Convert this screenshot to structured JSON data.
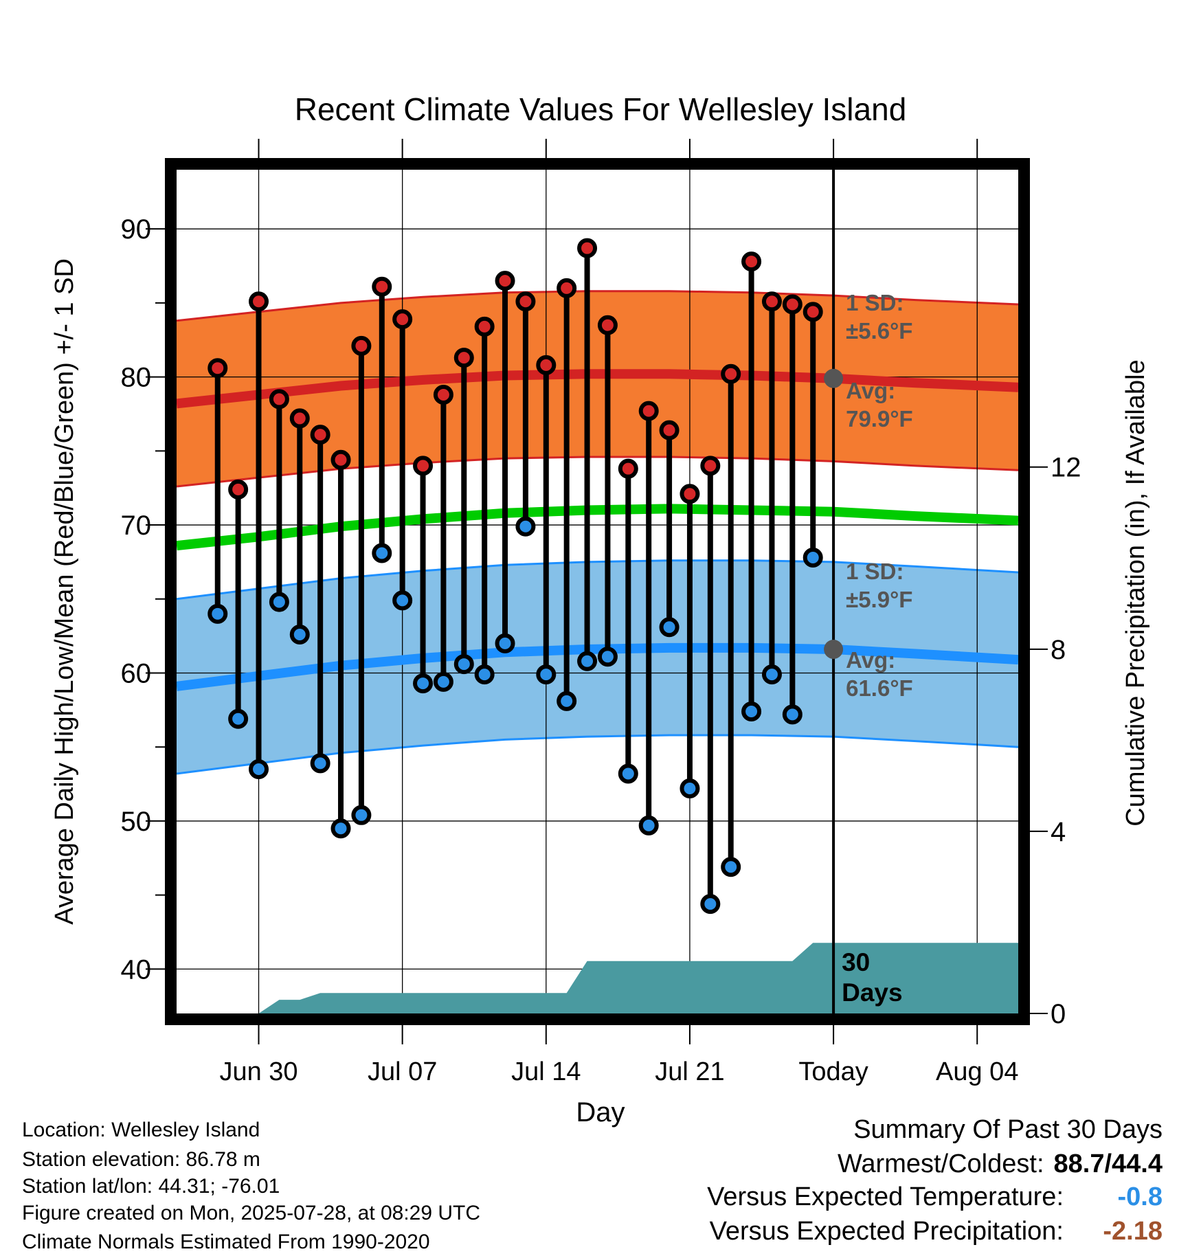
{
  "chart_data": {
    "type": "line",
    "title": "Recent Climate Values For Wellesley Island",
    "xlabel": "Day",
    "ylabel": "Average Daily High/Low/Mean (Red/Blue/Green) +/- 1 SD",
    "y2label": "Cumulative Precipitation (in), If Available",
    "ylim": [
      37,
      94
    ],
    "y2lim": [
      0,
      18.53
    ],
    "yticks": [
      40,
      50,
      60,
      70,
      80,
      90
    ],
    "y2ticks": [
      0,
      4,
      8,
      12
    ],
    "xlim": [
      "2025-06-26",
      "2025-08-06"
    ],
    "xtick_labels": [
      {
        "date": "2025-06-30",
        "label": "Jun 30"
      },
      {
        "date": "2025-07-07",
        "label": "Jul 07"
      },
      {
        "date": "2025-07-14",
        "label": "Jul 14"
      },
      {
        "date": "2025-07-21",
        "label": "Jul 21"
      },
      {
        "date": "2025-07-28",
        "label": "Today"
      },
      {
        "date": "2025-08-04",
        "label": "Aug 04"
      }
    ],
    "grid": true,
    "today": "2025-07-28",
    "dates": [
      "2025-06-28",
      "2025-06-29",
      "2025-06-30",
      "2025-07-01",
      "2025-07-02",
      "2025-07-03",
      "2025-07-04",
      "2025-07-05",
      "2025-07-06",
      "2025-07-07",
      "2025-07-08",
      "2025-07-09",
      "2025-07-10",
      "2025-07-11",
      "2025-07-12",
      "2025-07-13",
      "2025-07-14",
      "2025-07-15",
      "2025-07-16",
      "2025-07-17",
      "2025-07-18",
      "2025-07-19",
      "2025-07-20",
      "2025-07-21",
      "2025-07-22",
      "2025-07-23",
      "2025-07-24",
      "2025-07-25",
      "2025-07-26",
      "2025-07-27"
    ],
    "series": [
      {
        "name": "High",
        "color": "#d62728",
        "values": [
          80.6,
          72.4,
          85.1,
          78.5,
          77.2,
          76.1,
          74.4,
          82.1,
          86.1,
          83.9,
          74.0,
          78.8,
          81.3,
          83.4,
          86.5,
          85.1,
          80.8,
          86.0,
          88.7,
          83.5,
          73.8,
          77.7,
          76.4,
          72.1,
          74.0,
          80.2,
          87.8,
          85.1,
          84.9,
          84.4
        ]
      },
      {
        "name": "Low",
        "color": "#2b8fe6",
        "values": [
          64.0,
          56.9,
          53.5,
          64.8,
          62.6,
          53.9,
          49.5,
          50.4,
          68.1,
          64.9,
          59.3,
          59.4,
          60.6,
          59.9,
          62.0,
          69.9,
          59.9,
          58.1,
          60.8,
          61.1,
          53.2,
          49.7,
          63.1,
          52.2,
          44.4,
          46.9,
          57.4,
          59.9,
          57.2,
          67.8
        ]
      }
    ],
    "normals": {
      "dates": [
        "2025-06-26",
        "2025-06-30",
        "2025-07-04",
        "2025-07-08",
        "2025-07-12",
        "2025-07-16",
        "2025-07-20",
        "2025-07-24",
        "2025-07-28",
        "2025-08-01",
        "2025-08-06"
      ],
      "high_avg": [
        78.2,
        78.8,
        79.4,
        79.8,
        80.1,
        80.2,
        80.2,
        80.1,
        79.9,
        79.6,
        79.3
      ],
      "mean_avg": [
        68.6,
        69.2,
        69.9,
        70.4,
        70.8,
        71.0,
        71.1,
        71.0,
        70.9,
        70.6,
        70.3
      ],
      "low_avg": [
        59.1,
        59.8,
        60.5,
        61.0,
        61.4,
        61.6,
        61.7,
        61.7,
        61.6,
        61.3,
        60.9
      ],
      "high_sd": 5.6,
      "low_sd": 5.9,
      "colors": {
        "high_band": "#f47b30",
        "high_line": "#d32323",
        "mean_line": "#00cc00",
        "low_band": "#85c0e8",
        "low_line": "#1e90ff"
      }
    },
    "annotations": {
      "high_sd": {
        "l1": "1 SD:",
        "l2": "±5.6°F"
      },
      "high_avg": {
        "l1": "Avg:",
        "l2": "79.9°F",
        "value": 79.9
      },
      "low_sd": {
        "l1": "1 SD:",
        "l2": "±5.9°F"
      },
      "low_avg": {
        "l1": "Avg:",
        "l2": "61.6°F",
        "value": 61.6
      },
      "days": {
        "l1": "30",
        "l2": "Days"
      }
    },
    "precip": {
      "color": "#4a9aa0",
      "dates": [
        "2025-06-26",
        "2025-06-30",
        "2025-07-01",
        "2025-07-02",
        "2025-07-03",
        "2025-07-15",
        "2025-07-16",
        "2025-07-26",
        "2025-07-27",
        "2025-08-06"
      ],
      "values": [
        0,
        0,
        0.3,
        0.3,
        0.45,
        0.45,
        1.15,
        1.15,
        1.55,
        1.55
      ]
    }
  },
  "info": {
    "location": "Location: Wellesley Island",
    "elevation": "Station elevation: 86.78 m",
    "latlon": "Station lat/lon: 44.31; -76.01",
    "created": "Figure created on Mon, 2025-07-28, at 08:29 UTC",
    "normals": "Climate Normals Estimated From 1990-2020"
  },
  "summary": {
    "heading": "Summary Of Past 30 Days",
    "warm_cold_label": "Warmest/Coldest:",
    "warm_cold_value": "88.7/44.4",
    "temp_label": "Versus Expected Temperature:",
    "temp_value": "-0.8",
    "temp_color": "#2b8fe6",
    "precip_label": "Versus Expected Precipitation:",
    "precip_value": "-2.18",
    "precip_color": "#a0522d"
  }
}
